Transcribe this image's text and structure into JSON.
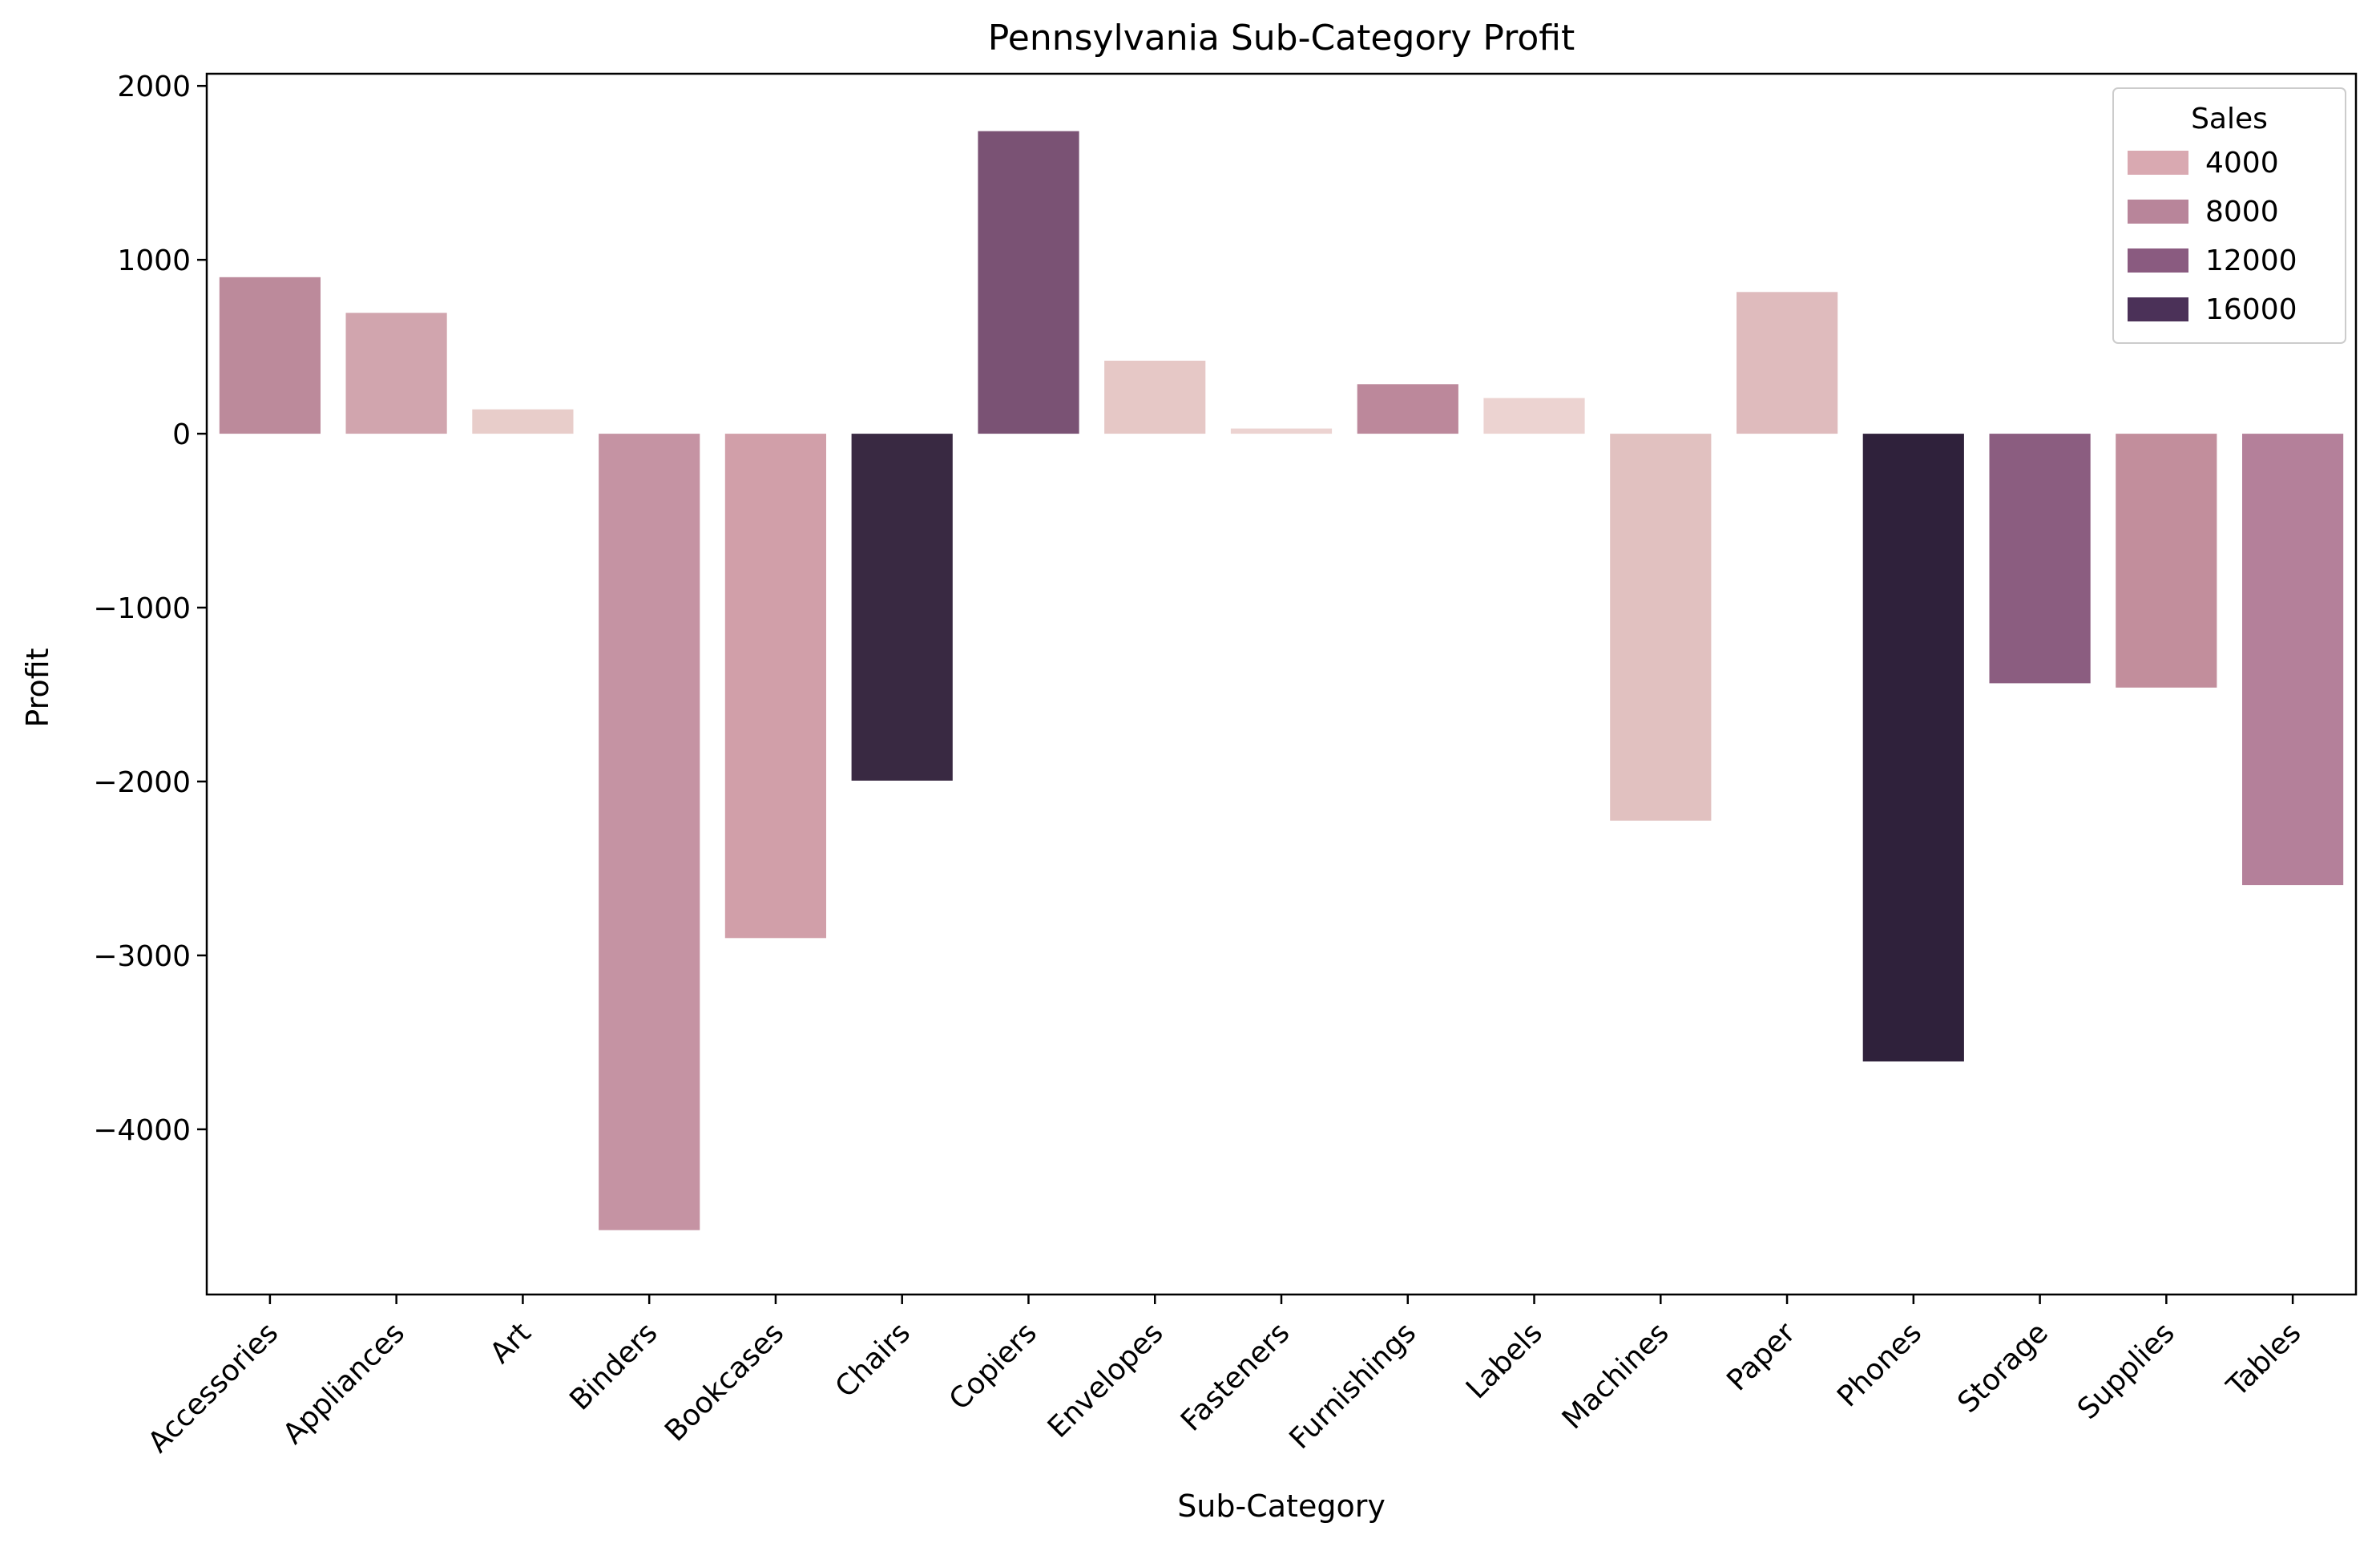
{
  "chart_data": {
    "type": "bar",
    "title": "Pennsylvania Sub-Category Profit",
    "xlabel": "Sub-Category",
    "ylabel": "Profit",
    "ylim": [
      -4950,
      2070
    ],
    "yticks": [
      2000,
      1000,
      0,
      -1000,
      -2000,
      -3000,
      -4000
    ],
    "ytick_labels": [
      "2000",
      "1000",
      "0",
      "−1000",
      "−2000",
      "−3000",
      "−4000"
    ],
    "categories": [
      "Accessories",
      "Appliances",
      "Art",
      "Binders",
      "Bookcases",
      "Chairs",
      "Copiers",
      "Envelopes",
      "Fasteners",
      "Furnishings",
      "Labels",
      "Machines",
      "Paper",
      "Phones",
      "Storage",
      "Supplies",
      "Tables"
    ],
    "values": [
      900,
      695,
      140,
      -4580,
      -2900,
      -1995,
      1740,
      420,
      30,
      285,
      205,
      -2225,
      815,
      -3610,
      -1435,
      -1460,
      -2595
    ],
    "bar_colors": [
      "#bc8a9b",
      "#d1a5ae",
      "#e8cdca",
      "#c593a3",
      "#d19fa9",
      "#392942",
      "#7a5274",
      "#e6c8c6",
      "#ecd3d1",
      "#bc889b",
      "#ecd3d1",
      "#e1c1c0",
      "#dfbbbd",
      "#2f213b",
      "#8b5d80",
      "#c28e9c",
      "#b4809a"
    ],
    "grid": false,
    "legend": {
      "title": "Sales",
      "placement": "top-right",
      "entries": [
        {
          "label": "4000",
          "color": "#d9a9b1"
        },
        {
          "label": "8000",
          "color": "#b8859a"
        },
        {
          "label": "12000",
          "color": "#8a5b80"
        },
        {
          "label": "16000",
          "color": "#4b3158"
        }
      ]
    }
  }
}
